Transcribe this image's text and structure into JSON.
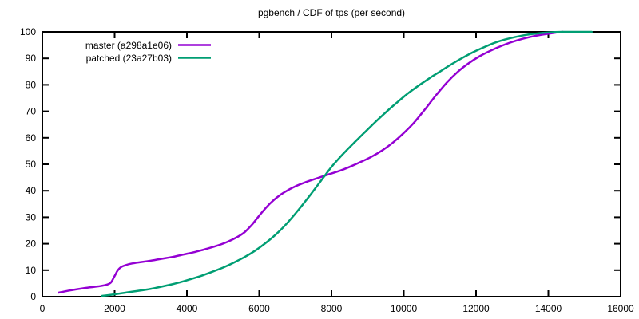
{
  "title": "pgbench / CDF of tps (per second)",
  "colors": {
    "background": "#ffffff",
    "axis": "#000000",
    "master_line": "#9400d3",
    "patched_line": "#009e73"
  },
  "legend": {
    "position": "top-left-inside",
    "entries": [
      {
        "label": "master (a298a1e06)",
        "color": "#9400d3"
      },
      {
        "label": "patched (23a27b03)",
        "color": "#009e73"
      }
    ]
  },
  "chart_data": {
    "type": "line",
    "title": "pgbench / CDF of tps (per second)",
    "xlabel": "",
    "ylabel": "",
    "xlim": [
      0,
      16000
    ],
    "ylim": [
      0,
      100
    ],
    "x_ticks": [
      0,
      2000,
      4000,
      6000,
      8000,
      10000,
      12000,
      14000,
      16000
    ],
    "y_ticks": [
      0,
      10,
      20,
      30,
      40,
      50,
      60,
      70,
      80,
      90,
      100
    ],
    "grid": false,
    "ticks_mirrored_inward": true,
    "legend_position": "top-left-inside",
    "series": [
      {
        "name": "master (a298a1e06)",
        "color": "#9400d3",
        "points": [
          [
            450,
            1.5
          ],
          [
            700,
            2.2
          ],
          [
            1000,
            2.9
          ],
          [
            1300,
            3.5
          ],
          [
            1600,
            4.0
          ],
          [
            1800,
            4.6
          ],
          [
            1900,
            5.4
          ],
          [
            2000,
            7.8
          ],
          [
            2080,
            9.8
          ],
          [
            2160,
            11.0
          ],
          [
            2300,
            11.9
          ],
          [
            2500,
            12.6
          ],
          [
            2750,
            13.1
          ],
          [
            3000,
            13.6
          ],
          [
            3300,
            14.3
          ],
          [
            3600,
            15.0
          ],
          [
            3900,
            15.9
          ],
          [
            4200,
            16.8
          ],
          [
            4500,
            17.9
          ],
          [
            4800,
            19.1
          ],
          [
            5100,
            20.6
          ],
          [
            5400,
            22.6
          ],
          [
            5600,
            24.4
          ],
          [
            5800,
            27.2
          ],
          [
            6000,
            30.6
          ],
          [
            6150,
            33.0
          ],
          [
            6300,
            35.2
          ],
          [
            6500,
            37.6
          ],
          [
            6700,
            39.5
          ],
          [
            7000,
            41.7
          ],
          [
            7300,
            43.3
          ],
          [
            7600,
            44.7
          ],
          [
            7900,
            46.1
          ],
          [
            8200,
            47.4
          ],
          [
            8500,
            49.0
          ],
          [
            8800,
            50.8
          ],
          [
            9100,
            52.8
          ],
          [
            9400,
            55.2
          ],
          [
            9700,
            58.2
          ],
          [
            10000,
            61.8
          ],
          [
            10300,
            66.0
          ],
          [
            10600,
            71.0
          ],
          [
            10900,
            76.2
          ],
          [
            11200,
            81.0
          ],
          [
            11500,
            85.0
          ],
          [
            11800,
            88.2
          ],
          [
            12100,
            90.8
          ],
          [
            12400,
            92.9
          ],
          [
            12700,
            94.7
          ],
          [
            13000,
            96.2
          ],
          [
            13300,
            97.4
          ],
          [
            13600,
            98.4
          ],
          [
            13900,
            99.1
          ],
          [
            14200,
            99.7
          ],
          [
            14400,
            100
          ]
        ]
      },
      {
        "name": "patched (23a27b03)",
        "color": "#009e73",
        "points": [
          [
            1650,
            0.3
          ],
          [
            2000,
            0.9
          ],
          [
            2300,
            1.5
          ],
          [
            2600,
            2.1
          ],
          [
            2900,
            2.7
          ],
          [
            3200,
            3.5
          ],
          [
            3500,
            4.4
          ],
          [
            3800,
            5.4
          ],
          [
            4100,
            6.6
          ],
          [
            4400,
            7.9
          ],
          [
            4700,
            9.4
          ],
          [
            5000,
            11.0
          ],
          [
            5300,
            12.9
          ],
          [
            5600,
            15.0
          ],
          [
            5900,
            17.5
          ],
          [
            6200,
            20.5
          ],
          [
            6500,
            24.0
          ],
          [
            6800,
            28.2
          ],
          [
            7100,
            33.0
          ],
          [
            7400,
            38.2
          ],
          [
            7700,
            43.6
          ],
          [
            8000,
            49.0
          ],
          [
            8300,
            53.6
          ],
          [
            8600,
            57.8
          ],
          [
            8900,
            61.8
          ],
          [
            9200,
            65.8
          ],
          [
            9500,
            69.6
          ],
          [
            9800,
            73.2
          ],
          [
            10100,
            76.6
          ],
          [
            10400,
            79.6
          ],
          [
            10700,
            82.4
          ],
          [
            11000,
            85.0
          ],
          [
            11300,
            87.6
          ],
          [
            11600,
            90.0
          ],
          [
            11900,
            92.2
          ],
          [
            12200,
            94.1
          ],
          [
            12500,
            95.8
          ],
          [
            12800,
            97.1
          ],
          [
            13100,
            98.1
          ],
          [
            13400,
            98.9
          ],
          [
            13700,
            99.4
          ],
          [
            14000,
            99.8
          ],
          [
            14400,
            100
          ],
          [
            15200,
            100
          ]
        ]
      }
    ]
  }
}
